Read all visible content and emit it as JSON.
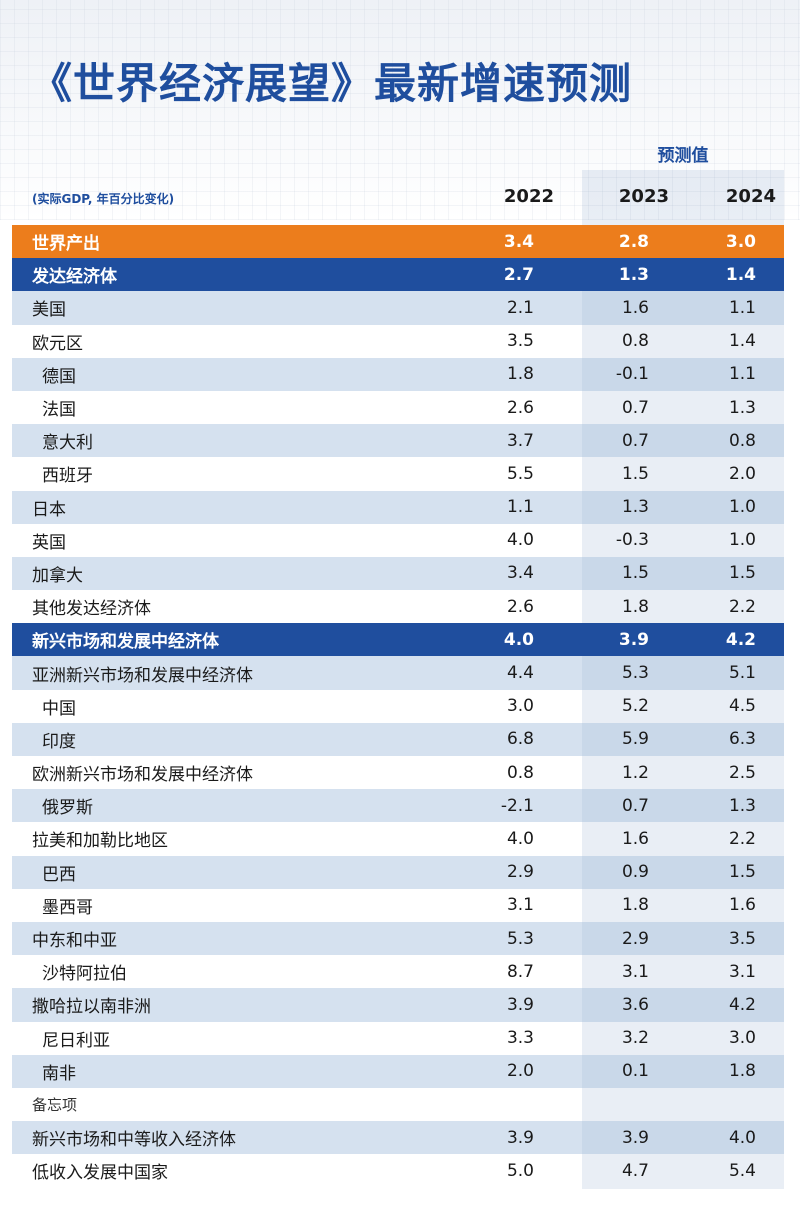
{
  "title": "《世界经济展望》最新增速预测",
  "forecast_label": "预测值",
  "subtitle": "(实际GDP, 年百分比变化)",
  "years": [
    "2022",
    "2023",
    "2024"
  ],
  "rows": [
    {
      "name": "世界产出",
      "values": [
        "3.4",
        "2.8",
        "3.0"
      ]
    },
    {
      "name": "发达经济体",
      "values": [
        "2.7",
        "1.3",
        "1.4"
      ]
    },
    {
      "name": "美国",
      "values": [
        "2.1",
        "1.6",
        "1.1"
      ]
    },
    {
      "name": "欧元区",
      "values": [
        "3.5",
        "0.8",
        "1.4"
      ]
    },
    {
      "name": "德国",
      "values": [
        "1.8",
        "-0.1",
        "1.1"
      ]
    },
    {
      "name": "法国",
      "values": [
        "2.6",
        "0.7",
        "1.3"
      ]
    },
    {
      "name": "意大利",
      "values": [
        "3.7",
        "0.7",
        "0.8"
      ]
    },
    {
      "name": "西班牙",
      "values": [
        "5.5",
        "1.5",
        "2.0"
      ]
    },
    {
      "name": "日本",
      "values": [
        "1.1",
        "1.3",
        "1.0"
      ]
    },
    {
      "name": "英国",
      "values": [
        "4.0",
        "-0.3",
        "1.0"
      ]
    },
    {
      "name": "加拿大",
      "values": [
        "3.4",
        "1.5",
        "1.5"
      ]
    },
    {
      "name": "其他发达经济体",
      "values": [
        "2.6",
        "1.8",
        "2.2"
      ]
    },
    {
      "name": "新兴市场和发展中经济体",
      "values": [
        "4.0",
        "3.9",
        "4.2"
      ]
    },
    {
      "name": "亚洲新兴市场和发展中经济体",
      "values": [
        "4.4",
        "5.3",
        "5.1"
      ]
    },
    {
      "name": "中国",
      "values": [
        "3.0",
        "5.2",
        "4.5"
      ]
    },
    {
      "name": "印度",
      "values": [
        "6.8",
        "5.9",
        "6.3"
      ]
    },
    {
      "name": "欧洲新兴市场和发展中经济体",
      "values": [
        "0.8",
        "1.2",
        "2.5"
      ]
    },
    {
      "name": "俄罗斯",
      "values": [
        "-2.1",
        "0.7",
        "1.3"
      ]
    },
    {
      "name": "拉美和加勒比地区",
      "values": [
        "4.0",
        "1.6",
        "2.2"
      ]
    },
    {
      "name": "巴西",
      "values": [
        "2.9",
        "0.9",
        "1.5"
      ]
    },
    {
      "name": "墨西哥",
      "values": [
        "3.1",
        "1.8",
        "1.6"
      ]
    },
    {
      "name": "中东和中亚",
      "values": [
        "5.3",
        "2.9",
        "3.5"
      ]
    },
    {
      "name": "沙特阿拉伯",
      "values": [
        "8.7",
        "3.1",
        "3.1"
      ]
    },
    {
      "name": "撒哈拉以南非洲",
      "values": [
        "3.9",
        "3.6",
        "4.2"
      ]
    },
    {
      "name": "尼日利亚",
      "values": [
        "3.3",
        "3.2",
        "3.0"
      ]
    },
    {
      "name": "南非",
      "values": [
        "2.0",
        "0.1",
        "1.8"
      ]
    },
    {
      "name": "备忘项",
      "values": [
        "",
        "",
        ""
      ]
    },
    {
      "name": "新兴市场和中等收入经济体",
      "values": [
        "3.9",
        "3.9",
        "4.0"
      ]
    },
    {
      "name": "低收入发展中国家",
      "values": [
        "5.0",
        "4.7",
        "5.4"
      ]
    }
  ]
}
